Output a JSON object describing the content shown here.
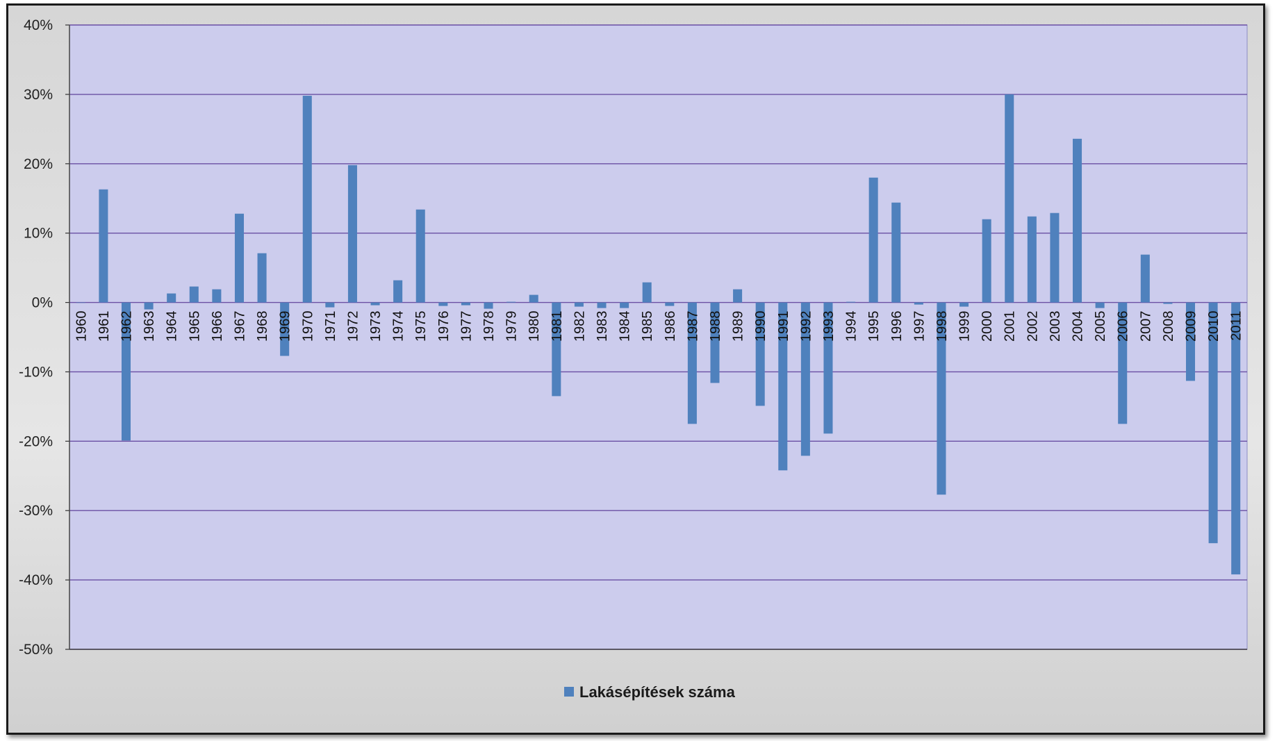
{
  "chart_data": {
    "type": "bar",
    "title": "",
    "xlabel": "",
    "ylabel": "",
    "ylim": [
      -0.5,
      0.4
    ],
    "yticks": [
      0.4,
      0.3,
      0.2,
      0.1,
      0,
      -0.1,
      -0.2,
      -0.3,
      -0.4,
      -0.5
    ],
    "ytick_labels": [
      "40%",
      "30%",
      "20%",
      "10%",
      "0%",
      "-10%",
      "-20%",
      "-30%",
      "-40%",
      "-50%"
    ],
    "grid": true,
    "legend_position": "bottom",
    "colors": {
      "bar": "#4f81bd",
      "plot_bg": "#cccced",
      "gridline": "#6a4fa3",
      "frame_bg": "#dedede"
    },
    "categories": [
      "1960",
      "1961",
      "1962",
      "1963",
      "1964",
      "1965",
      "1966",
      "1967",
      "1968",
      "1969",
      "1970",
      "1971",
      "1972",
      "1973",
      "1974",
      "1975",
      "1976",
      "1977",
      "1978",
      "1979",
      "1980",
      "1981",
      "1982",
      "1983",
      "1984",
      "1985",
      "1986",
      "1987",
      "1988",
      "1989",
      "1990",
      "1991",
      "1992",
      "1993",
      "1994",
      "1995",
      "1996",
      "1997",
      "1998",
      "1999",
      "2000",
      "2001",
      "2002",
      "2003",
      "2004",
      "2005",
      "2006",
      "2007",
      "2008",
      "2009",
      "2010",
      "2011"
    ],
    "series": [
      {
        "name": "Lakásépítések száma",
        "values": [
          0,
          0.163,
          -0.199,
          -0.01,
          0.013,
          0.023,
          0.019,
          0.128,
          0.071,
          -0.077,
          0.298,
          -0.007,
          0.198,
          -0.004,
          0.032,
          0.134,
          -0.005,
          -0.004,
          -0.009,
          0.001,
          0.011,
          -0.135,
          -0.006,
          -0.008,
          -0.008,
          0.029,
          -0.005,
          -0.175,
          -0.116,
          0.019,
          -0.149,
          -0.242,
          -0.221,
          -0.189,
          0.001,
          0.18,
          0.144,
          -0.003,
          -0.277,
          -0.006,
          0.12,
          0.3,
          0.124,
          0.129,
          0.236,
          -0.008,
          -0.175,
          0.069,
          -0.002,
          -0.113,
          -0.347,
          -0.392
        ]
      }
    ]
  }
}
